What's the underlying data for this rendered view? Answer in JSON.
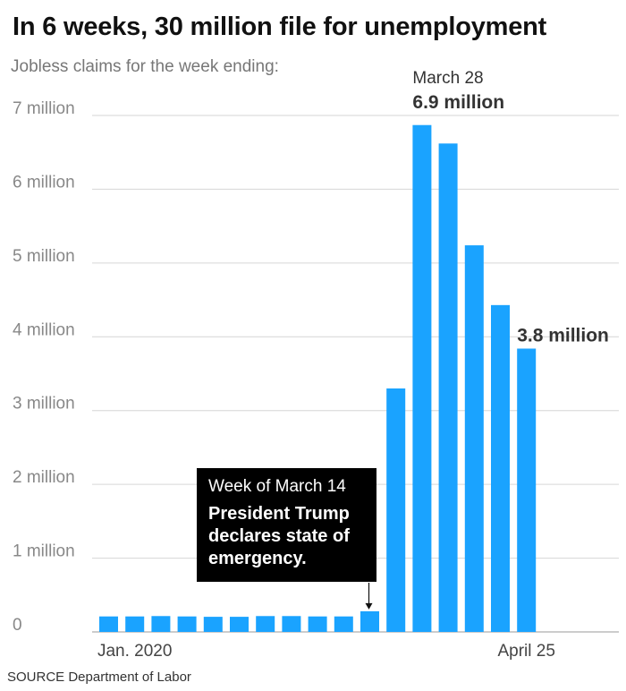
{
  "title": "In 6 weeks, 30 million file for unemployment",
  "subtitle": "Jobless claims for the week ending:",
  "source": "SOURCE Department of Labor",
  "annotation": {
    "week": "Week of March 14",
    "text": "President Trump declares state of emergency."
  },
  "chart_data": {
    "type": "bar",
    "title": "In 6 weeks, 30 million file for unemployment",
    "subtitle": "Jobless claims for the week ending:",
    "ylim": [
      0,
      7000000
    ],
    "y_ticks": [
      {
        "value": 0,
        "label": "0"
      },
      {
        "value": 1000000,
        "label": "1 million"
      },
      {
        "value": 2000000,
        "label": "2 million"
      },
      {
        "value": 3000000,
        "label": "3 million"
      },
      {
        "value": 4000000,
        "label": "4 million"
      },
      {
        "value": 5000000,
        "label": "5 million"
      },
      {
        "value": 6000000,
        "label": "6 million"
      },
      {
        "value": 7000000,
        "label": "7 million"
      }
    ],
    "x_labels": [
      {
        "index": 1,
        "label": "Jan. 2020"
      },
      {
        "index": 16,
        "label": "April 25"
      }
    ],
    "values": [
      210000,
      210000,
      215000,
      210000,
      205000,
      205000,
      215000,
      215000,
      210000,
      210000,
      280000,
      3300000,
      6870000,
      6620000,
      5240000,
      4430000,
      3840000
    ],
    "highlights": [
      {
        "index": 12,
        "date": "March 28",
        "value_label": "6.9 million"
      },
      {
        "index": 16,
        "value_label": "3.8 million"
      }
    ],
    "annotated_index": 10,
    "bar_color": "#1aa3ff",
    "grid": true
  }
}
